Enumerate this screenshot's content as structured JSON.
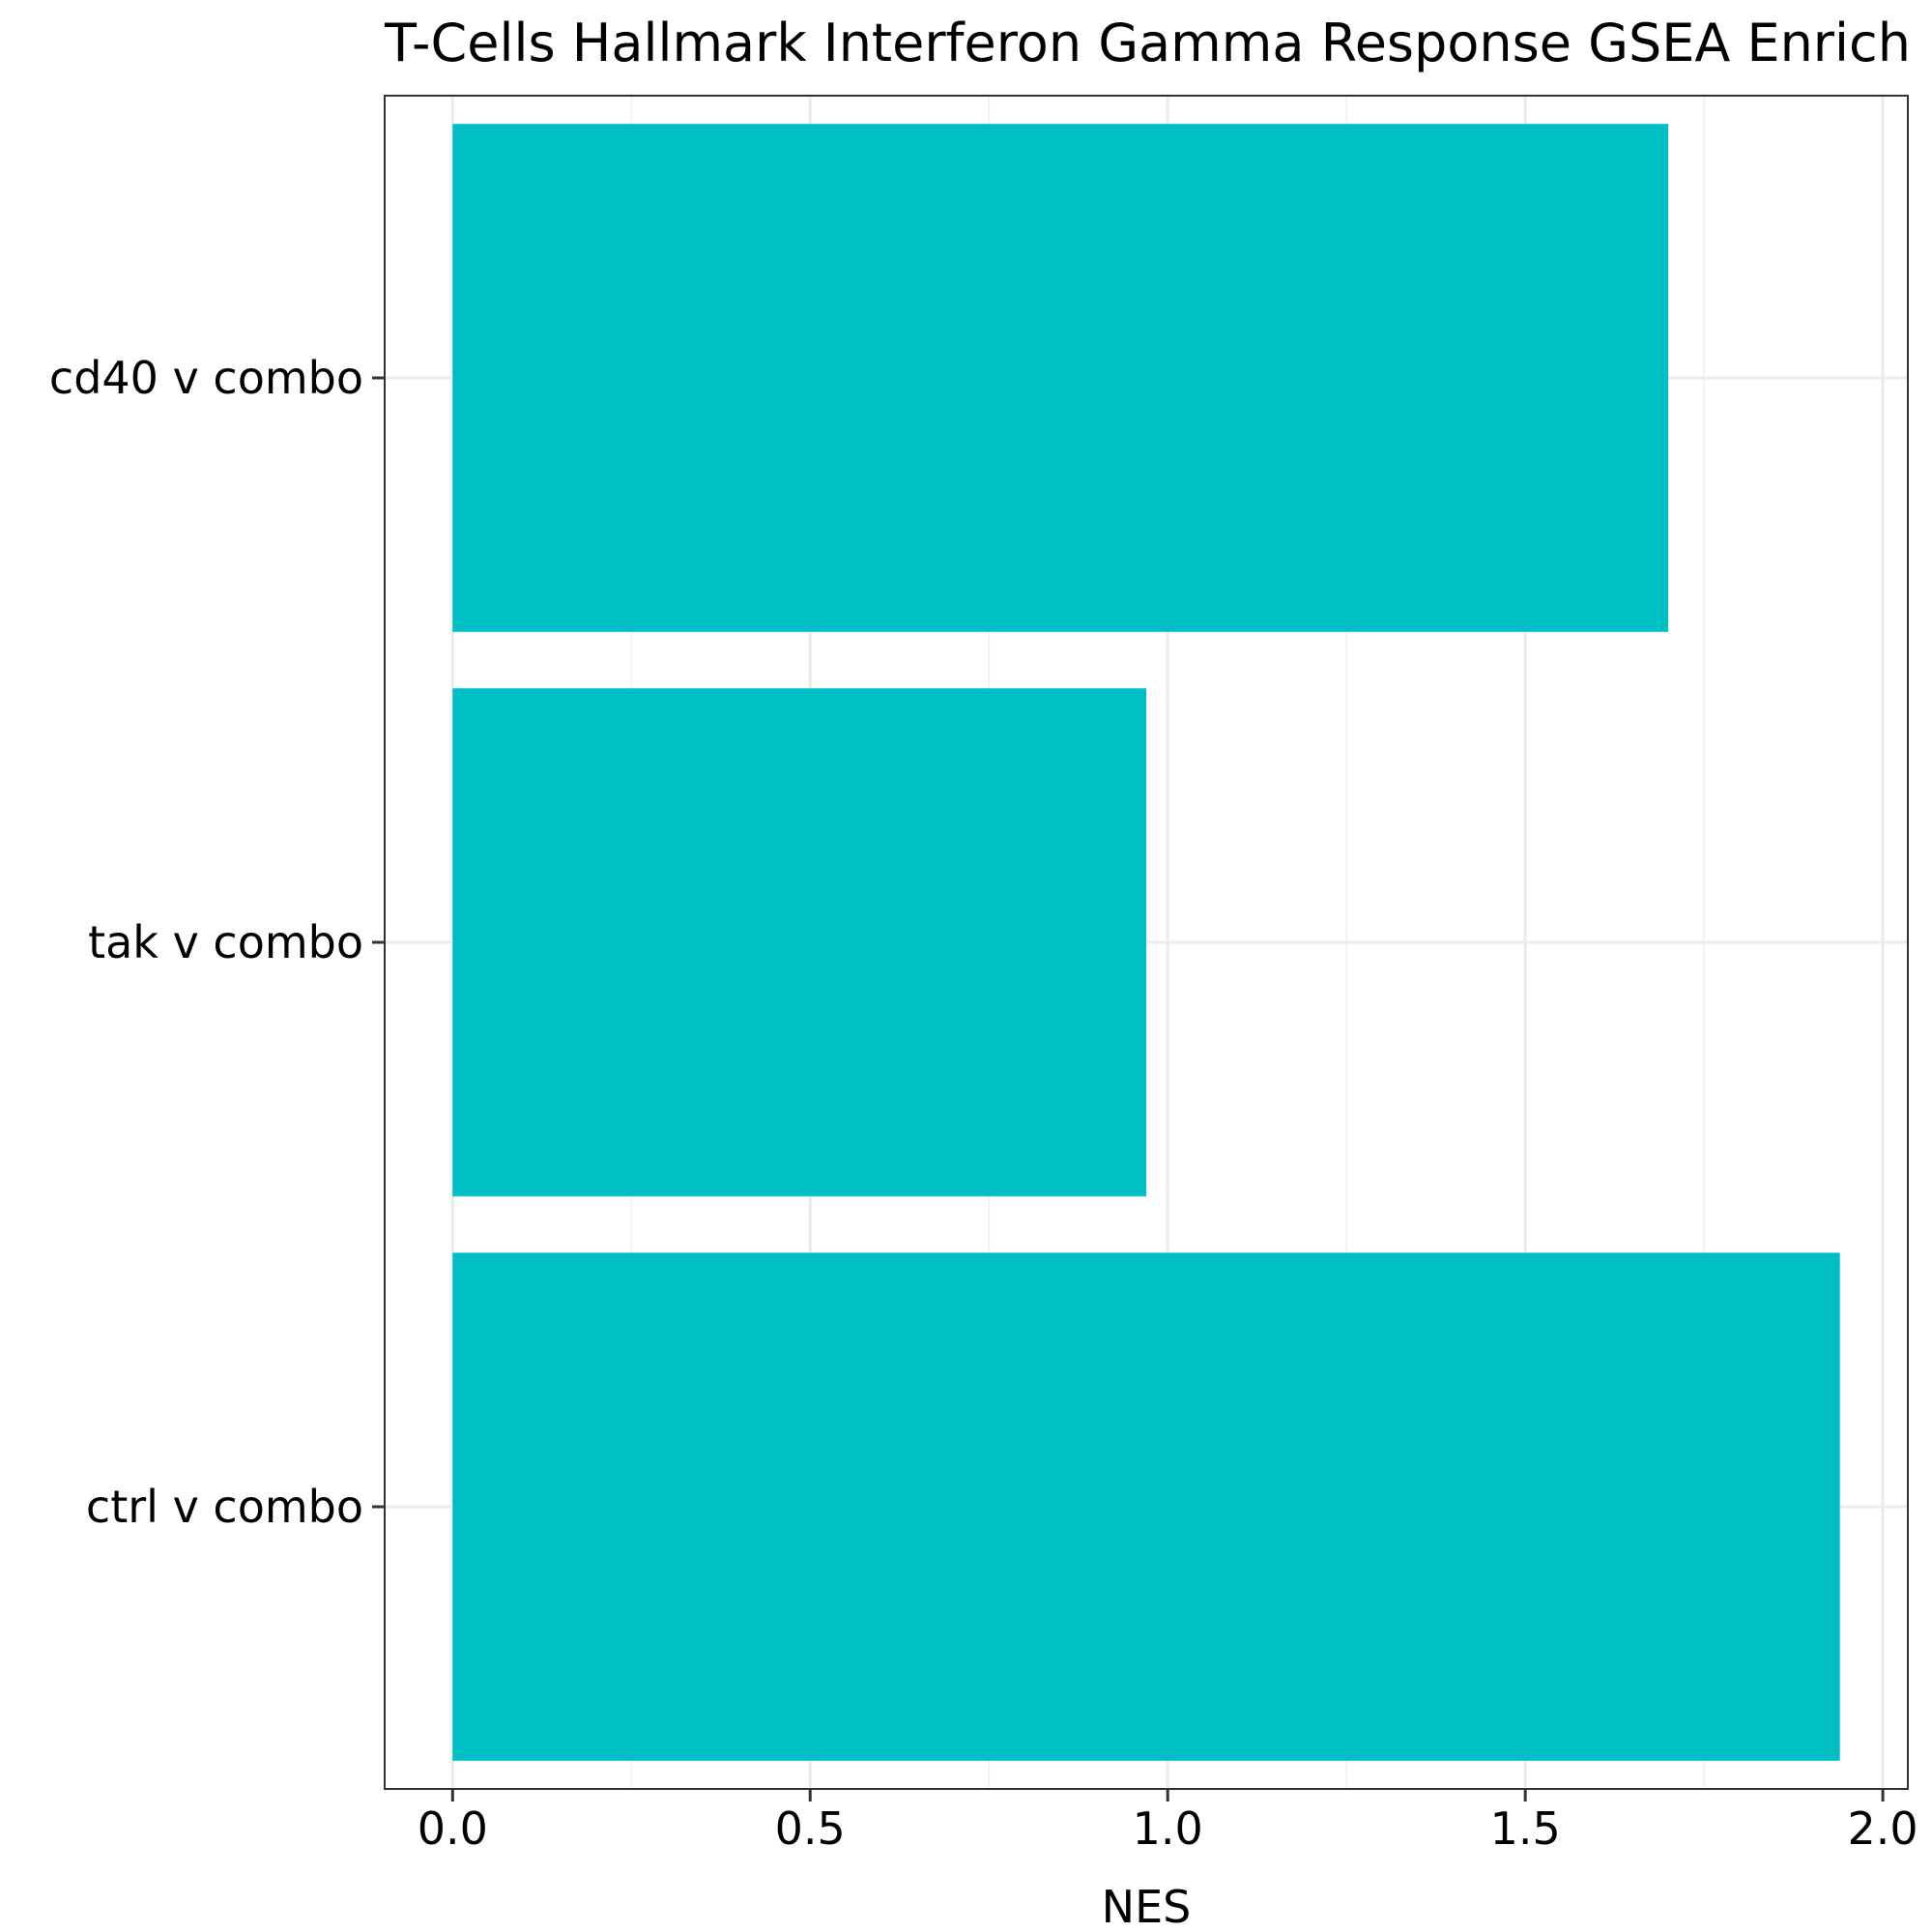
{
  "colors": {
    "bar_fill": "#00BFC4",
    "grid_major": "#EBEBEB",
    "grid_minor": "#F2F2F2",
    "panel_border": "#333333",
    "tick": "#333333"
  },
  "chart_data": {
    "type": "bar",
    "orientation": "horizontal",
    "title": "T-Cells Hallmark Interferon Gamma Response GSEA Enrich",
    "xlabel": "NES",
    "ylabel": "",
    "categories": [
      "cd40 v combo",
      "tak v combo",
      "ctrl v combo"
    ],
    "values": [
      1.7,
      0.97,
      1.94
    ],
    "xlim": [
      -0.095,
      2.035
    ],
    "xticks": [
      0.0,
      0.5,
      1.0,
      1.5,
      2.0
    ],
    "xtick_labels": [
      "0.0",
      "0.5",
      "1.0",
      "1.5",
      "2.0"
    ],
    "grid": true,
    "legend": "none"
  }
}
